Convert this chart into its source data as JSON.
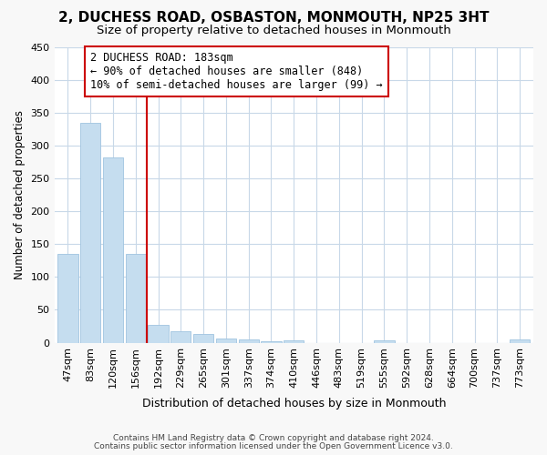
{
  "title": "2, DUCHESS ROAD, OSBASTON, MONMOUTH, NP25 3HT",
  "subtitle": "Size of property relative to detached houses in Monmouth",
  "xlabel": "Distribution of detached houses by size in Monmouth",
  "ylabel": "Number of detached properties",
  "categories": [
    "47sqm",
    "83sqm",
    "120sqm",
    "156sqm",
    "192sqm",
    "229sqm",
    "265sqm",
    "301sqm",
    "337sqm",
    "374sqm",
    "410sqm",
    "446sqm",
    "483sqm",
    "519sqm",
    "555sqm",
    "592sqm",
    "628sqm",
    "664sqm",
    "700sqm",
    "737sqm",
    "773sqm"
  ],
  "values": [
    135,
    335,
    282,
    135,
    27,
    17,
    13,
    7,
    5,
    2,
    3,
    0,
    0,
    0,
    4,
    0,
    0,
    0,
    0,
    0,
    5
  ],
  "bar_color": "#c5ddef",
  "bar_edge_color": "#a0c4e0",
  "vline_x": 3.5,
  "vline_color": "#cc0000",
  "annotation_line1": "2 DUCHESS ROAD: 183sqm",
  "annotation_line2": "← 90% of detached houses are smaller (848)",
  "annotation_line3": "10% of semi-detached houses are larger (99) →",
  "annotation_box_color": "#ffffff",
  "annotation_box_edge": "#cc0000",
  "footer_line1": "Contains HM Land Registry data © Crown copyright and database right 2024.",
  "footer_line2": "Contains public sector information licensed under the Open Government Licence v3.0.",
  "ylim": [
    0,
    450
  ],
  "yticks": [
    0,
    50,
    100,
    150,
    200,
    250,
    300,
    350,
    400,
    450
  ],
  "fig_bg_color": "#f8f8f8",
  "plot_bg_color": "#ffffff",
  "grid_color": "#c8d8e8"
}
